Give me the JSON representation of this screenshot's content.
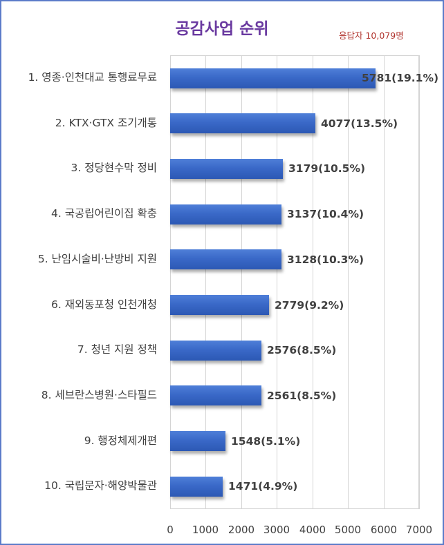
{
  "header": {
    "title": "공감사업 순위",
    "respondents": "응답자 10,079명"
  },
  "colors": {
    "title": "#6a3aa0",
    "respondents": "#b0322c",
    "bar": "#3a69c8",
    "frame_border": "#5b7bc9",
    "gridline": "#d4d4d4",
    "text": "#404040"
  },
  "chart_data": {
    "type": "bar",
    "orientation": "horizontal",
    "title": "공감사업 순위",
    "subtitle": "응답자 10,079명",
    "xlabel": "",
    "ylabel": "",
    "xlim": [
      0,
      7000
    ],
    "xticks": [
      "0",
      "1000",
      "2000",
      "3000",
      "4000",
      "5000",
      "6000",
      "7000"
    ],
    "grid": true,
    "legend": null,
    "categories": [
      "1. 영종·인천대교 통행료무료",
      "2. KTX·GTX 조기개통",
      "3. 정당현수막 정비",
      "4. 국공립어린이집 확충",
      "5. 난임시술비·난방비 지원",
      "6. 재외동포청 인천개청",
      "7. 청년 지원 정책",
      "8. 세브란스병원·스타필드",
      "9. 행정체제개편",
      "10. 국립문자·해양박물관"
    ],
    "values": [
      5781,
      4077,
      3179,
      3137,
      3128,
      2779,
      2576,
      2561,
      1548,
      1471
    ],
    "percents": [
      19.1,
      13.5,
      10.5,
      10.4,
      10.3,
      9.2,
      8.5,
      8.5,
      5.1,
      4.9
    ],
    "data_labels": [
      "5781(19.1%)",
      "4077(13.5%)",
      "3179(10.5%)",
      "3137(10.4%)",
      "3128(10.3%)",
      "2779(9.2%)",
      "2576(8.5%)",
      "2561(8.5%)",
      "1548(5.1%)",
      "1471(4.9%)"
    ]
  }
}
